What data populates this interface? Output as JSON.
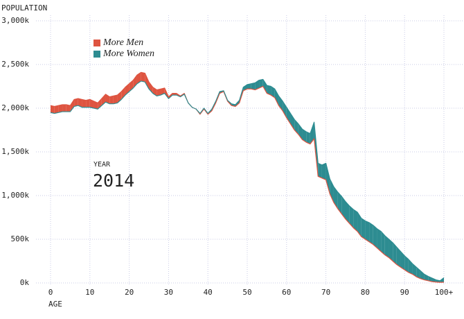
{
  "chart_data": {
    "type": "area-diff",
    "y_label": "POPULATION",
    "x_label": "AGE",
    "annotation_label": "YEAR",
    "annotation": "2014",
    "x": [
      0,
      1,
      2,
      3,
      4,
      5,
      6,
      7,
      8,
      9,
      10,
      11,
      12,
      13,
      14,
      15,
      16,
      17,
      18,
      19,
      20,
      21,
      22,
      23,
      24,
      25,
      26,
      27,
      28,
      29,
      30,
      31,
      32,
      33,
      34,
      35,
      36,
      37,
      38,
      39,
      40,
      41,
      42,
      43,
      44,
      45,
      46,
      47,
      48,
      49,
      50,
      51,
      52,
      53,
      54,
      55,
      56,
      57,
      58,
      59,
      60,
      61,
      62,
      63,
      64,
      65,
      66,
      67,
      68,
      69,
      70,
      71,
      72,
      73,
      74,
      75,
      76,
      77,
      78,
      79,
      80,
      81,
      82,
      83,
      84,
      85,
      86,
      87,
      88,
      89,
      90,
      91,
      92,
      93,
      94,
      95,
      96,
      97,
      98,
      99,
      100
    ],
    "series": [
      {
        "name": "More Men",
        "color": "#de5440",
        "values": [
          2030000,
          2020000,
          2030000,
          2040000,
          2040000,
          2030000,
          2100000,
          2110000,
          2100000,
          2090000,
          2100000,
          2080000,
          2060000,
          2110000,
          2160000,
          2130000,
          2140000,
          2150000,
          2190000,
          2240000,
          2280000,
          2320000,
          2380000,
          2410000,
          2400000,
          2300000,
          2240000,
          2210000,
          2220000,
          2230000,
          2130000,
          2170000,
          2170000,
          2140000,
          2170000,
          2060000,
          2010000,
          1990000,
          1930000,
          1990000,
          1930000,
          1970000,
          2060000,
          2170000,
          2190000,
          2080000,
          2030000,
          2020000,
          2060000,
          2200000,
          2220000,
          2220000,
          2210000,
          2230000,
          2250000,
          2170000,
          2150000,
          2120000,
          2030000,
          1970000,
          1890000,
          1820000,
          1750000,
          1700000,
          1640000,
          1610000,
          1590000,
          1650000,
          1220000,
          1200000,
          1180000,
          1020000,
          920000,
          850000,
          790000,
          730000,
          680000,
          630000,
          590000,
          530000,
          500000,
          470000,
          440000,
          400000,
          360000,
          320000,
          290000,
          250000,
          210000,
          180000,
          150000,
          120000,
          100000,
          70000,
          50000,
          35000,
          25000,
          15000,
          10000,
          7000,
          8000
        ]
      },
      {
        "name": "More Women",
        "color": "#2d8c91",
        "values": [
          1950000,
          1940000,
          1950000,
          1960000,
          1960000,
          1960000,
          2020000,
          2030000,
          2010000,
          2010000,
          2010000,
          2000000,
          1990000,
          2030000,
          2070000,
          2050000,
          2050000,
          2060000,
          2100000,
          2150000,
          2190000,
          2230000,
          2280000,
          2310000,
          2300000,
          2220000,
          2170000,
          2140000,
          2150000,
          2170000,
          2110000,
          2150000,
          2150000,
          2130000,
          2160000,
          2060000,
          2010000,
          1990000,
          1940000,
          2000000,
          1940000,
          1990000,
          2080000,
          2190000,
          2200000,
          2090000,
          2050000,
          2040000,
          2090000,
          2240000,
          2270000,
          2280000,
          2290000,
          2320000,
          2330000,
          2260000,
          2250000,
          2220000,
          2140000,
          2080000,
          2010000,
          1940000,
          1870000,
          1820000,
          1760000,
          1730000,
          1710000,
          1840000,
          1370000,
          1350000,
          1370000,
          1190000,
          1100000,
          1040000,
          990000,
          930000,
          880000,
          840000,
          810000,
          740000,
          710000,
          690000,
          660000,
          620000,
          590000,
          540000,
          500000,
          460000,
          410000,
          360000,
          310000,
          270000,
          220000,
          180000,
          140000,
          100000,
          75000,
          55000,
          35000,
          25000,
          60000
        ]
      }
    ],
    "xlim": [
      0,
      100
    ],
    "xticks": [
      0,
      10,
      20,
      30,
      40,
      50,
      60,
      70,
      80,
      90,
      {
        "value": 100,
        "label": "100+"
      }
    ],
    "ylim": [
      0,
      3000000
    ],
    "yticks": [
      {
        "value": 0,
        "label": "0k"
      },
      {
        "value": 500000,
        "label": "500k"
      },
      {
        "value": 1000000,
        "label": "1,000k"
      },
      {
        "value": 1500000,
        "label": "1,500k"
      },
      {
        "value": 2000000,
        "label": "2,000k"
      },
      {
        "value": 2500000,
        "label": "2,500k"
      },
      {
        "value": 3000000,
        "label": "3,000k"
      }
    ],
    "grid": true
  }
}
